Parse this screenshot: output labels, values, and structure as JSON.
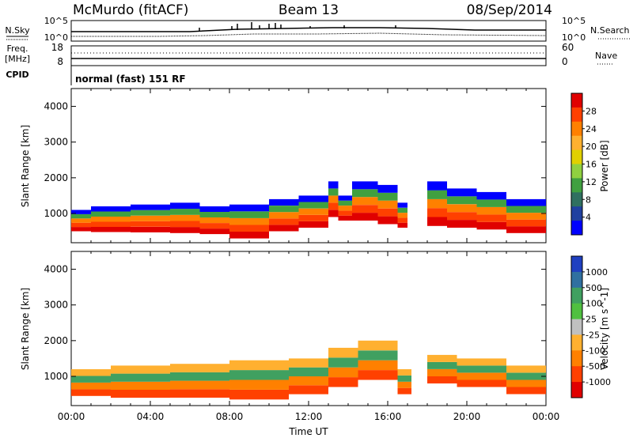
{
  "header": {
    "station": "McMurdo (fitACF)",
    "beam": "Beam 13",
    "date": "08/Sep/2014"
  },
  "top_panels": {
    "nsky_label": "N.Sky",
    "nsky_ticks": [
      "10^5",
      "10^0"
    ],
    "nsearch_label": "N.Search",
    "nsearch_ticks": [
      "10^5",
      "10^0"
    ],
    "freq_label_line1": "Freq.",
    "freq_label_line2": "[MHz]",
    "freq_ticks": [
      "18",
      "8"
    ],
    "nave_label": "Nave",
    "nave_ticks": [
      "60",
      "0"
    ],
    "cpid_label": "CPID",
    "cpid_value": "normal (fast) 151 RF"
  },
  "chart_data": [
    {
      "type": "heatmap",
      "name": "power",
      "ylabel": "Slant Range [km]",
      "xlabel": "Time UT",
      "xlim": [
        "00:00",
        "24:00"
      ],
      "ylim": [
        180,
        4500
      ],
      "y_ticks": [
        1000,
        2000,
        3000,
        4000
      ],
      "x_ticks": [
        "00:00",
        "04:00",
        "08:00",
        "12:00",
        "16:00",
        "20:00",
        "00:00"
      ],
      "colorbar": {
        "label": "Power [dB]",
        "ticks": [
          "28",
          "24",
          "20",
          "16",
          "12",
          "8",
          "4"
        ],
        "colors": [
          "#e00000",
          "#ff4000",
          "#ff8000",
          "#ffb030",
          "#e0d000",
          "#90d040",
          "#40a040",
          "#307060",
          "#2040a0",
          "#0000ff"
        ]
      },
      "bands": [
        {
          "t0": 0.0,
          "t1": 1.0,
          "low": 500,
          "high": 1100
        },
        {
          "t0": 1.0,
          "t1": 3.0,
          "low": 480,
          "high": 1200
        },
        {
          "t0": 3.0,
          "t1": 5.0,
          "low": 470,
          "high": 1250
        },
        {
          "t0": 5.0,
          "t1": 6.5,
          "low": 450,
          "high": 1300
        },
        {
          "t0": 6.5,
          "t1": 8.0,
          "low": 420,
          "high": 1200
        },
        {
          "t0": 8.0,
          "t1": 10.0,
          "low": 300,
          "high": 1250
        },
        {
          "t0": 10.0,
          "t1": 11.5,
          "low": 500,
          "high": 1400
        },
        {
          "t0": 11.5,
          "t1": 13.0,
          "low": 600,
          "high": 1500
        },
        {
          "t0": 13.0,
          "t1": 13.5,
          "low": 900,
          "high": 1900
        },
        {
          "t0": 13.5,
          "t1": 14.2,
          "low": 800,
          "high": 1500
        },
        {
          "t0": 14.2,
          "t1": 15.5,
          "low": 800,
          "high": 1900
        },
        {
          "t0": 15.5,
          "t1": 16.5,
          "low": 700,
          "high": 1800
        },
        {
          "t0": 16.5,
          "t1": 17.0,
          "low": 600,
          "high": 1300
        },
        {
          "t0": 18.0,
          "t1": 19.0,
          "low": 650,
          "high": 1900
        },
        {
          "t0": 19.0,
          "t1": 20.5,
          "low": 600,
          "high": 1700
        },
        {
          "t0": 20.5,
          "t1": 22.0,
          "low": 550,
          "high": 1600
        },
        {
          "t0": 22.0,
          "t1": 24.0,
          "low": 450,
          "high": 1400
        }
      ]
    },
    {
      "type": "heatmap",
      "name": "velocity",
      "ylabel": "Slant Range [km]",
      "xlabel": "Time UT",
      "xlim": [
        "00:00",
        "24:00"
      ],
      "ylim": [
        180,
        4500
      ],
      "y_ticks": [
        1000,
        2000,
        3000,
        4000
      ],
      "x_ticks": [
        "00:00",
        "04:00",
        "08:00",
        "12:00",
        "16:00",
        "20:00",
        "00:00"
      ],
      "colorbar": {
        "label": "Velocity [m s^-1]",
        "ticks": [
          "1000",
          "500",
          "100",
          "25",
          "-25",
          "-100",
          "-500",
          "-1000"
        ],
        "colors": [
          "#2040c0",
          "#3070a0",
          "#40a060",
          "#50c040",
          "#c0c0c0",
          "#ffb030",
          "#ff8000",
          "#ff4000",
          "#e00000"
        ]
      },
      "bands": [
        {
          "t0": 0.0,
          "t1": 2.0,
          "low": 450,
          "high": 1200
        },
        {
          "t0": 2.0,
          "t1": 5.0,
          "low": 400,
          "high": 1300
        },
        {
          "t0": 5.0,
          "t1": 8.0,
          "low": 400,
          "high": 1350
        },
        {
          "t0": 8.0,
          "t1": 11.0,
          "low": 350,
          "high": 1450
        },
        {
          "t0": 11.0,
          "t1": 13.0,
          "low": 500,
          "high": 1500
        },
        {
          "t0": 13.0,
          "t1": 14.5,
          "low": 700,
          "high": 1800
        },
        {
          "t0": 14.5,
          "t1": 16.5,
          "low": 900,
          "high": 2000
        },
        {
          "t0": 16.5,
          "t1": 17.2,
          "low": 500,
          "high": 1200
        },
        {
          "t0": 18.0,
          "t1": 19.5,
          "low": 800,
          "high": 1600
        },
        {
          "t0": 19.5,
          "t1": 22.0,
          "low": 700,
          "high": 1500
        },
        {
          "t0": 22.0,
          "t1": 24.0,
          "low": 500,
          "high": 1300
        }
      ]
    }
  ]
}
